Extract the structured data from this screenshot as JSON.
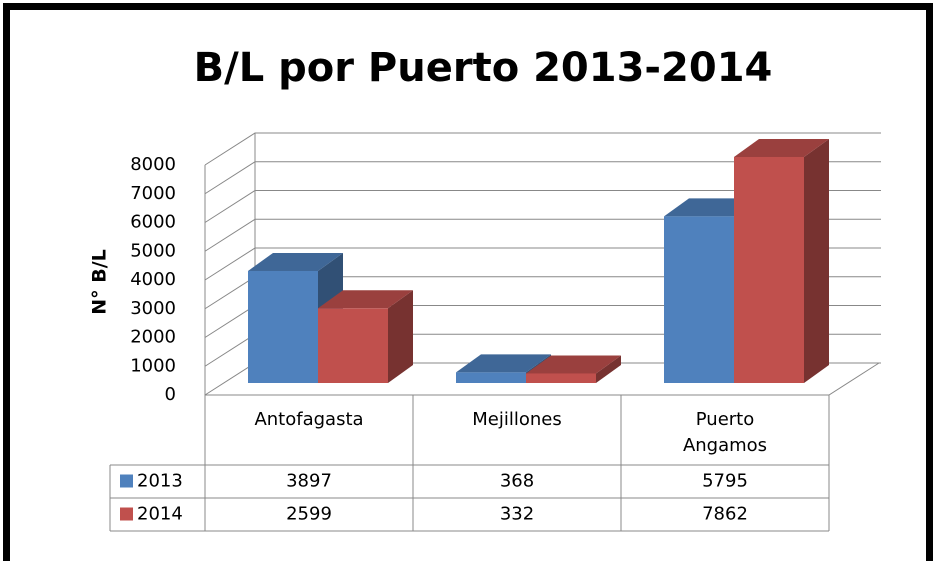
{
  "chart_data": {
    "type": "bar",
    "title": "B/L por Puerto 2013-2014",
    "y_label": "N° B/L",
    "categories": [
      "Antofagasta",
      "Mejillones",
      "Puerto Angamos"
    ],
    "series": [
      {
        "name": "2013",
        "color": "#4f81bd",
        "values": [
          3897,
          368,
          5795
        ]
      },
      {
        "name": "2014",
        "color": "#c0504d",
        "values": [
          2599,
          332,
          7862
        ]
      }
    ],
    "ylim": [
      0,
      8000
    ],
    "yticks": [
      0,
      1000,
      2000,
      3000,
      4000,
      5000,
      6000,
      7000,
      8000
    ],
    "grid": true
  }
}
